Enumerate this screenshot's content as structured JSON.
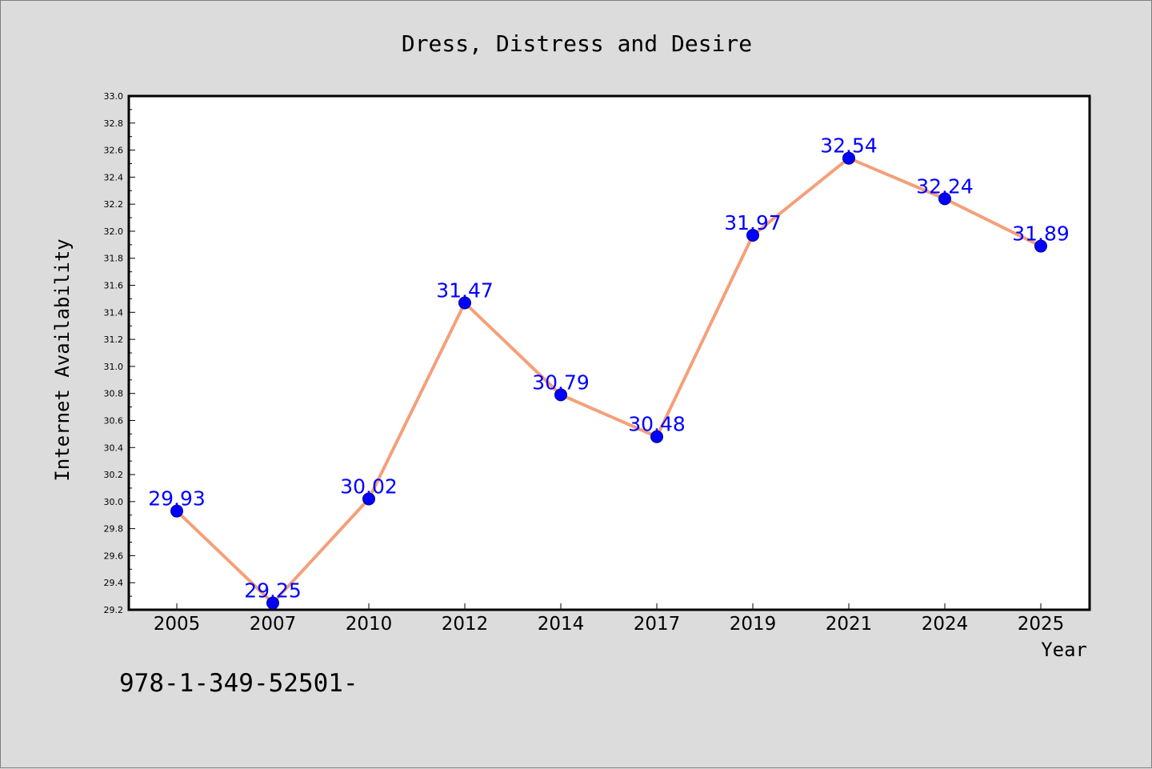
{
  "chart_data": {
    "type": "line",
    "title": "Dress, Distress and Desire",
    "xlabel": "Year",
    "ylabel": "Internet Availability",
    "categories": [
      "2005",
      "2007",
      "2010",
      "2012",
      "2014",
      "2017",
      "2019",
      "2021",
      "2024",
      "2025"
    ],
    "series": [
      {
        "values": [
          29.93,
          29.25,
          30.02,
          31.47,
          30.79,
          30.48,
          31.97,
          32.54,
          32.24,
          31.89
        ],
        "data_labels": [
          "29.93",
          "29.25",
          "30.02",
          "31.47",
          "30.79",
          "30.48",
          "31.97",
          "32.54",
          "32.24",
          "31.89"
        ],
        "line_color": "#f4a07a",
        "marker_color": "#0000ff"
      }
    ],
    "ylim": [
      29.2,
      33.0
    ],
    "yticks": [
      "29.2",
      "29.4",
      "29.6",
      "29.8",
      "30.0",
      "30.2",
      "30.4",
      "30.6",
      "30.8",
      "31.0",
      "31.2",
      "31.4",
      "31.6",
      "31.8",
      "32.0",
      "32.2",
      "32.4",
      "32.6",
      "32.8",
      "33.0"
    ],
    "grid": false,
    "legend": "none"
  },
  "footer": {
    "isbn": "978-1-349-52501-"
  },
  "colors": {
    "background": "#dcdcdc",
    "plot_background": "#ffffff",
    "line": "#f4a07a",
    "marker": "#0000ff",
    "data_label": "#0000ff"
  }
}
